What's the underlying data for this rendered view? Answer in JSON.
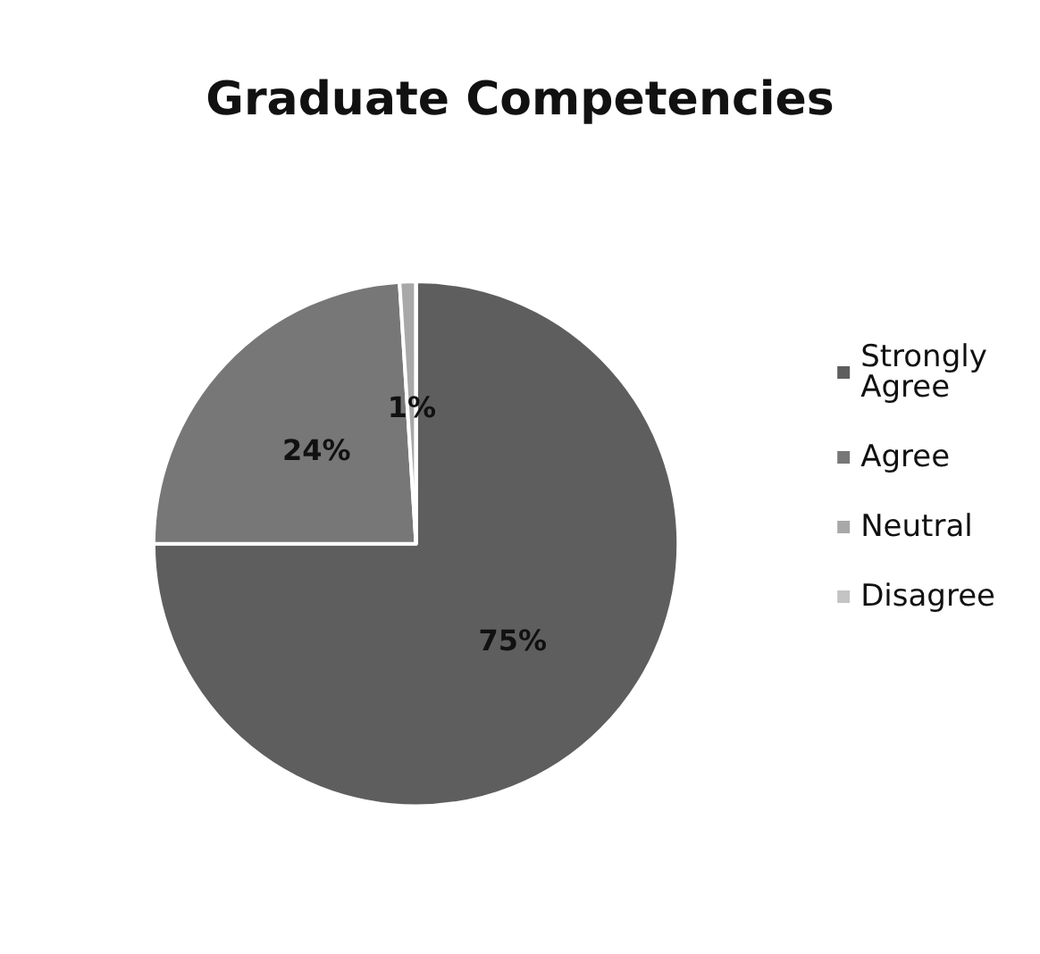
{
  "chart_data": {
    "type": "pie",
    "title": "Graduate Competencies",
    "categories": [
      "Strongly Agree",
      "Agree",
      "Neutral",
      "Disagree"
    ],
    "values": [
      75,
      24,
      1,
      0
    ],
    "colors": [
      "#5e5e5e",
      "#777777",
      "#a8a8a8",
      "#c4c4c4"
    ],
    "value_labels": [
      "75%",
      "24%",
      "1%",
      null
    ],
    "legend": "right"
  }
}
